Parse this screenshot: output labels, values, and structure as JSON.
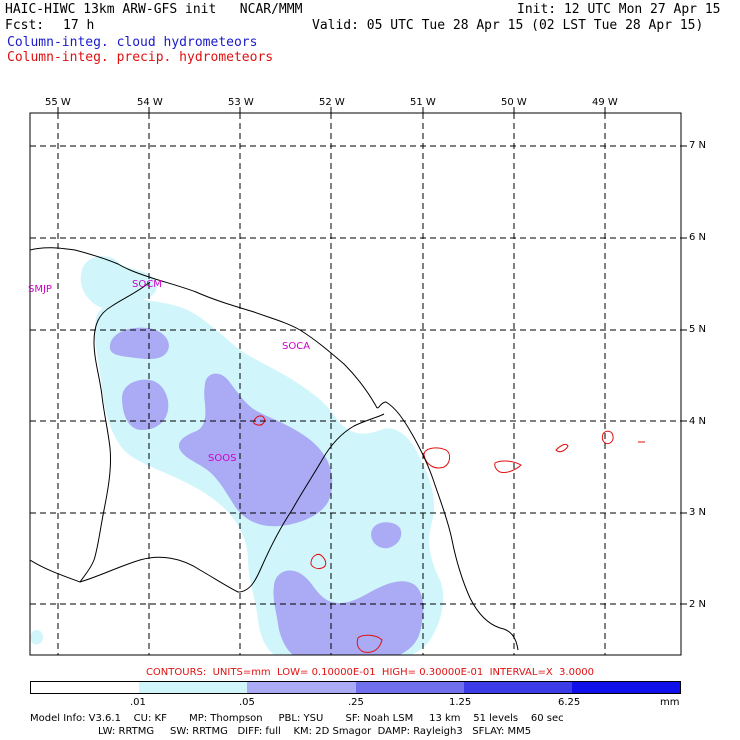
{
  "header": {
    "title": "HAIC-HIWC 13km ARW-GFS init   NCAR/MMM",
    "init": "Init: 12 UTC Mon 27 Apr 15",
    "fcst_label": "Fcst:",
    "fcst_value": "17 h",
    "valid": "Valid: 05 UTC Tue 28 Apr 15 (02 LST Tue 28 Apr 15)",
    "legend_cloud": "Column-integ. cloud hydrometeors",
    "legend_precip": "Column-integ. precip. hydrometeors"
  },
  "map": {
    "longitude_labels": [
      "55 W",
      "54 W",
      "53 W",
      "52 W",
      "51 W",
      "50 W",
      "49 W"
    ],
    "latitude_labels": [
      "7 N",
      "6 N",
      "5 N",
      "4 N",
      "3 N",
      "2 N"
    ],
    "stations": [
      "SMJP",
      "SOCM",
      "SOCA",
      "SOOS"
    ]
  },
  "contours": "CONTOURS:  UNITS=mm  LOW= 0.10000E-01  HIGH= 0.30000E-01  INTERVAL=X  3.0000",
  "colorbar": {
    "labels": [
      ".01",
      ".05",
      ".25",
      "1.25",
      "6.25"
    ],
    "units": "mm",
    "colors": [
      "#ffffff",
      "#d0f6fb",
      "#aaaaf5",
      "#7070ee",
      "#3b3be8",
      "#1010ea"
    ]
  },
  "model_info": {
    "line1": "Model Info: V3.6.1    CU: KF       MP: Thompson     PBL: YSU       SF: Noah LSM     13 km    51 levels    60 sec",
    "line2": "LW: RRTMG     SW: RRTMG   DIFF: full    KM: 2D Smagor  DAMP: Rayleigh3   SFLAY: MM5"
  }
}
